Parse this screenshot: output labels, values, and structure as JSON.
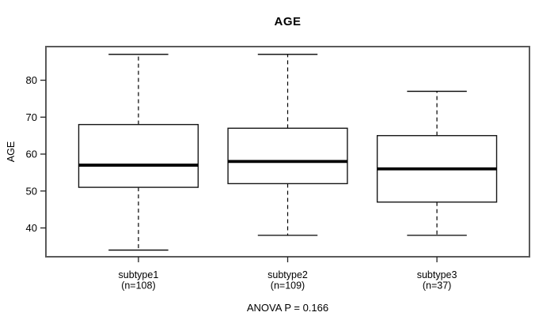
{
  "chart_data": {
    "type": "boxplot",
    "title": "AGE",
    "ylabel": "AGE",
    "xlabel": "",
    "annotation": "ANOVA P = 0.166",
    "yticks": [
      40,
      50,
      60,
      70,
      80
    ],
    "ylim": [
      32.2,
      89.1
    ],
    "grid": false,
    "legend": "none",
    "groups": [
      {
        "label": "subtype1",
        "n_label": "(n=108)",
        "whisker_low": 34,
        "q1": 51,
        "median": 57,
        "q3": 68,
        "whisker_high": 87
      },
      {
        "label": "subtype2",
        "n_label": "(n=109)",
        "whisker_low": 38,
        "q1": 52,
        "median": 58,
        "q3": 67,
        "whisker_high": 87
      },
      {
        "label": "subtype3",
        "n_label": "(n=37)",
        "whisker_low": 38,
        "q1": 47,
        "median": 56,
        "q3": 65,
        "whisker_high": 77
      }
    ],
    "colors": {
      "line": "#000000",
      "frame": "#5a5a5a",
      "tick": "#222222",
      "background": "#ffffff"
    }
  }
}
